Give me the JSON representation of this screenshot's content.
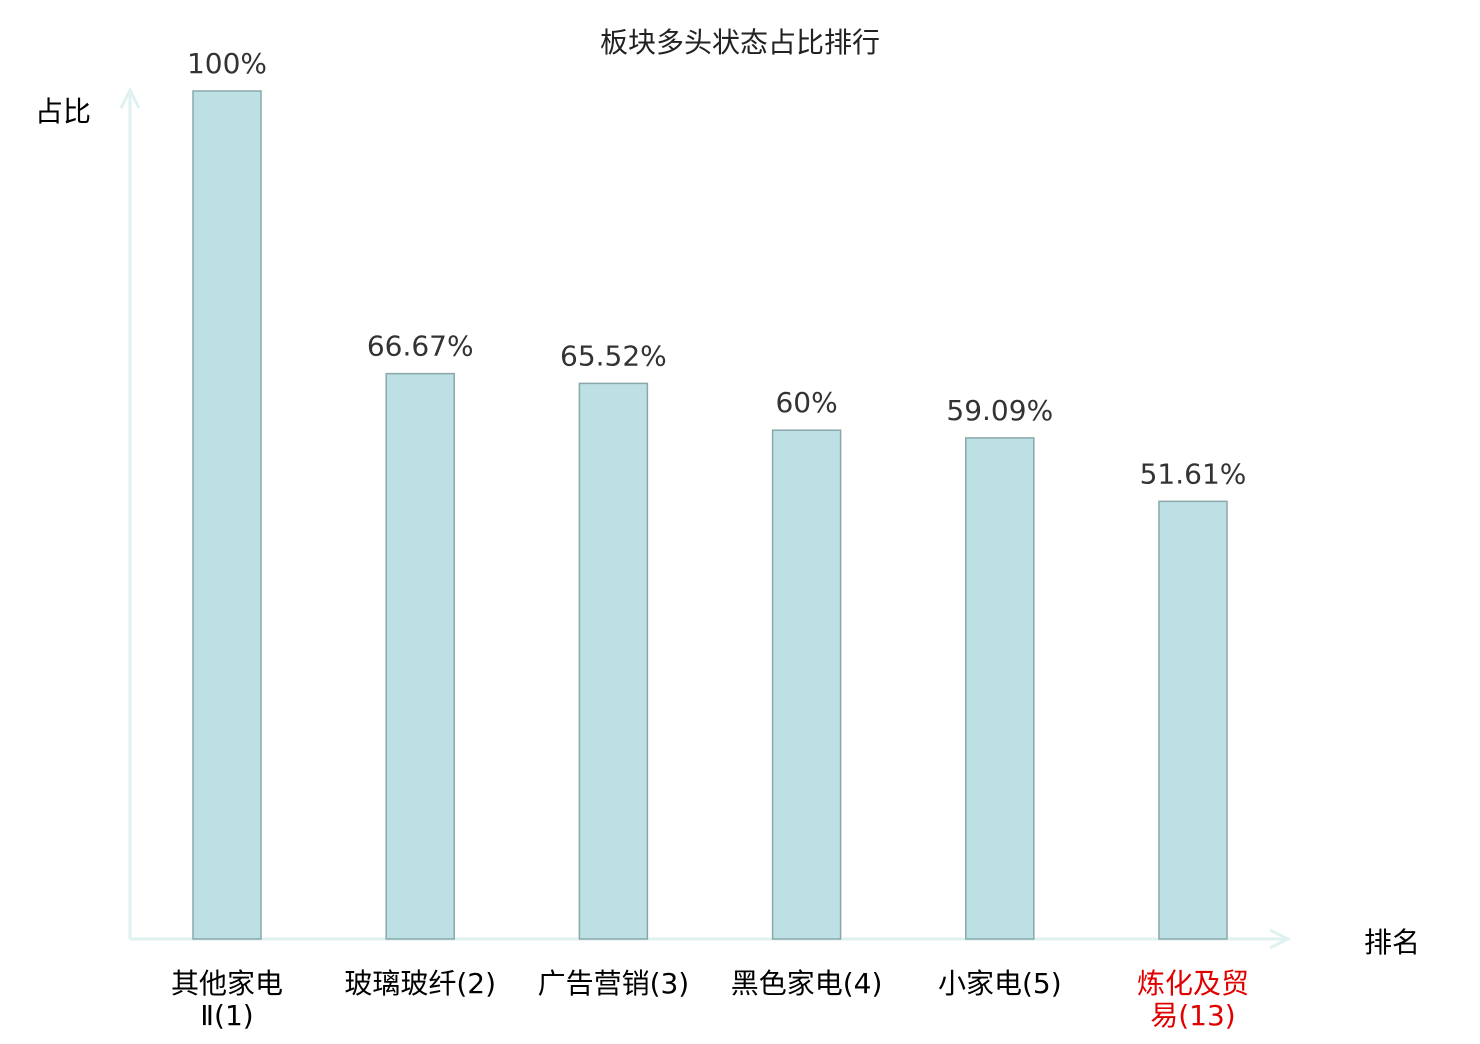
{
  "chart_data": {
    "type": "bar",
    "title": "板块多头状态占比排行",
    "xlabel": "排名",
    "ylabel": "占比",
    "ylim": [
      0,
      100
    ],
    "grid": false,
    "categories": [
      [
        "其他家电",
        "Ⅱ(1)"
      ],
      [
        "玻璃玻纤(2)"
      ],
      [
        "广告营销(3)"
      ],
      [
        "黑色家电(4)"
      ],
      [
        "小家电(5)"
      ],
      [
        "炼化及贸",
        "易(13)"
      ]
    ],
    "values": [
      100,
      66.67,
      65.52,
      60,
      59.09,
      51.61
    ],
    "data_labels": [
      "100%",
      "66.67%",
      "65.52%",
      "60%",
      "59.09%",
      "51.61%"
    ],
    "highlight_index": 5,
    "colors": {
      "bar_fill": "#bce0e3",
      "bar_stroke": "#8aa8aa",
      "axis": "#dff2f0",
      "label": "#000000",
      "highlight": "#e00000",
      "data_label": "#333333"
    }
  }
}
